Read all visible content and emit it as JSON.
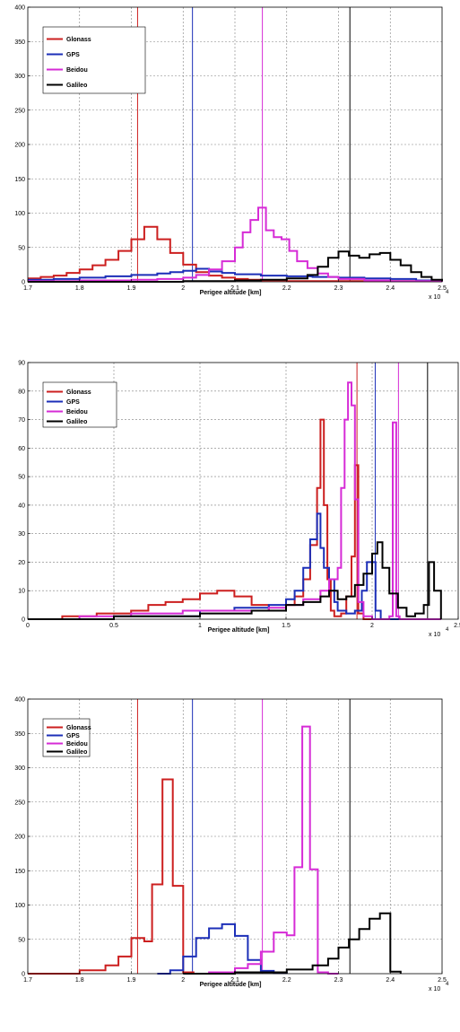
{
  "chart_data": [
    {
      "type": "line",
      "xlabel": "Perigee altitude [km]",
      "x_exponent_label": "x 10",
      "x_exponent": "4",
      "xlim": [
        17000,
        25000
      ],
      "ylim": [
        0,
        400
      ],
      "xticks": [
        17000,
        18000,
        19000,
        20000,
        21000,
        22000,
        23000,
        24000,
        25000
      ],
      "xtick_labels": [
        "1.7",
        "1.8",
        "1.9",
        "2",
        "2.1",
        "2.2",
        "2.3",
        "2.4",
        "2.5"
      ],
      "yticks": [
        0,
        50,
        100,
        150,
        200,
        250,
        300,
        350,
        400
      ],
      "ytick_labels": [
        "0",
        "50",
        "100",
        "150",
        "200",
        "250",
        "300",
        "350",
        "400"
      ],
      "grid": true,
      "legend_position": "top-left",
      "series": [
        {
          "name": "Glonass",
          "color": "#cc1f1f",
          "x": [
            17000,
            17250,
            17500,
            17750,
            18000,
            18250,
            18500,
            18750,
            19000,
            19250,
            19500,
            19750,
            20000,
            20250,
            20500,
            20750,
            21000,
            21250,
            21500,
            21750,
            22000,
            22500,
            23000,
            23500,
            24000,
            25000
          ],
          "values": [
            5,
            7,
            9,
            13,
            18,
            24,
            32,
            45,
            62,
            80,
            62,
            42,
            25,
            14,
            9,
            6,
            4,
            3,
            2,
            2,
            1,
            1,
            1,
            1,
            1,
            0
          ]
        },
        {
          "name": "GPS",
          "color": "#1c2fb8",
          "x": [
            17000,
            17500,
            18000,
            18500,
            19000,
            19500,
            19750,
            20000,
            20250,
            20500,
            20750,
            21000,
            21500,
            22000,
            22500,
            23000,
            23500,
            24000,
            24500,
            25000
          ],
          "values": [
            3,
            4,
            6,
            8,
            10,
            12,
            14,
            16,
            19,
            15,
            13,
            11,
            9,
            8,
            7,
            6,
            5,
            4,
            2,
            0
          ]
        },
        {
          "name": "Beidou",
          "color": "#d62bd6",
          "x": [
            17000,
            17500,
            18000,
            18500,
            19000,
            19500,
            20000,
            20250,
            20500,
            20750,
            21000,
            21150,
            21300,
            21450,
            21600,
            21750,
            21900,
            22050,
            22200,
            22400,
            22600,
            22800,
            23000,
            23500,
            24000,
            25000
          ],
          "values": [
            1,
            1,
            2,
            2,
            3,
            4,
            6,
            10,
            18,
            30,
            50,
            72,
            90,
            108,
            75,
            65,
            62,
            45,
            30,
            20,
            12,
            7,
            4,
            2,
            1,
            0
          ]
        },
        {
          "name": "Galileo",
          "color": "#000000",
          "x": [
            17000,
            18000,
            19000,
            20000,
            21000,
            21500,
            22000,
            22400,
            22600,
            22800,
            23000,
            23200,
            23400,
            23600,
            23800,
            24000,
            24200,
            24400,
            24600,
            24800,
            25000
          ],
          "values": [
            0,
            0,
            0,
            1,
            2,
            3,
            5,
            10,
            22,
            35,
            44,
            38,
            35,
            40,
            42,
            32,
            24,
            14,
            7,
            3,
            1
          ]
        }
      ],
      "reference_lines": [
        {
          "series": "Glonass",
          "x": 19120
        },
        {
          "series": "GPS",
          "x": 20180
        },
        {
          "series": "Beidou",
          "x": 21530
        },
        {
          "series": "Galileo",
          "x": 23220
        }
      ]
    },
    {
      "type": "line",
      "xlabel": "Perigee altitude [km]",
      "x_exponent_label": "x 10",
      "x_exponent": "4",
      "xlim": [
        0,
        25000
      ],
      "ylim": [
        0,
        90
      ],
      "xticks": [
        0,
        5000,
        10000,
        15000,
        20000,
        25000
      ],
      "xtick_labels": [
        "0",
        "0.5",
        "1",
        "1.5",
        "2",
        "2.5"
      ],
      "yticks": [
        0,
        10,
        20,
        30,
        40,
        50,
        60,
        70,
        80,
        90
      ],
      "ytick_labels": [
        "0",
        "10",
        "20",
        "30",
        "40",
        "50",
        "60",
        "70",
        "80",
        "90"
      ],
      "grid": true,
      "legend_position": "top-left",
      "series": [
        {
          "name": "Glonass",
          "color": "#cc1f1f",
          "x": [
            0,
            2000,
            4000,
            5000,
            6000,
            7000,
            8000,
            9000,
            10000,
            11000,
            12000,
            13000,
            14000,
            15000,
            15500,
            16000,
            16400,
            16800,
            17000,
            17200,
            17400,
            17600,
            17800,
            18000,
            18200,
            18500,
            18800,
            19000,
            19200,
            19500,
            20000,
            21000,
            22000,
            23000,
            24000
          ],
          "values": [
            0,
            1,
            2,
            2,
            3,
            5,
            6,
            7,
            9,
            10,
            8,
            5,
            3,
            5,
            8,
            14,
            26,
            46,
            70,
            40,
            14,
            3,
            1,
            1,
            2,
            8,
            22,
            54,
            2,
            0,
            0,
            0,
            0,
            0,
            0
          ]
        },
        {
          "name": "GPS",
          "color": "#1c2fb8",
          "x": [
            0,
            5000,
            10000,
            12000,
            14000,
            15000,
            15500,
            16000,
            16400,
            16800,
            17000,
            17200,
            17500,
            17800,
            18000,
            18500,
            19000,
            19400,
            19700,
            20000,
            20200,
            20500,
            21000,
            22000,
            23000,
            24000
          ],
          "values": [
            0,
            1,
            3,
            4,
            5,
            7,
            10,
            18,
            28,
            37,
            25,
            18,
            14,
            6,
            3,
            2,
            3,
            10,
            20,
            20,
            3,
            0,
            0,
            0,
            0,
            0
          ]
        },
        {
          "name": "Beidou",
          "color": "#d62bd6",
          "x": [
            0,
            3000,
            6000,
            9000,
            12000,
            14000,
            15000,
            16000,
            17000,
            17500,
            18000,
            18200,
            18400,
            18600,
            18800,
            19000,
            19200,
            19500,
            20000,
            20500,
            20800,
            21000,
            21200,
            21400,
            21600,
            22000,
            23000,
            24000
          ],
          "values": [
            0,
            1,
            2,
            3,
            3,
            4,
            5,
            7,
            10,
            14,
            18,
            46,
            70,
            83,
            75,
            42,
            6,
            1,
            0,
            0,
            0,
            1,
            69,
            1,
            0,
            0,
            0,
            0
          ]
        },
        {
          "name": "Galileo",
          "color": "#000000",
          "x": [
            0,
            5000,
            10000,
            13000,
            15000,
            16000,
            17000,
            17500,
            18000,
            18500,
            19000,
            19500,
            20000,
            20300,
            20600,
            21000,
            21500,
            22000,
            22500,
            23000,
            23300,
            23600,
            24000
          ],
          "values": [
            0,
            1,
            2,
            3,
            5,
            6,
            8,
            10,
            7,
            8,
            12,
            16,
            23,
            27,
            18,
            9,
            4,
            1,
            2,
            5,
            20,
            10,
            0
          ]
        }
      ],
      "reference_lines": [
        {
          "series": "Glonass",
          "x": 19120
        },
        {
          "series": "GPS",
          "x": 20180
        },
        {
          "series": "Beidou",
          "x": 21530
        },
        {
          "series": "Galileo",
          "x": 23220
        }
      ]
    },
    {
      "type": "line",
      "xlabel": "Perigee altitude [km]",
      "x_exponent_label": "x 10",
      "x_exponent": "4",
      "xlim": [
        17000,
        25000
      ],
      "ylim": [
        0,
        400
      ],
      "xticks": [
        17000,
        18000,
        19000,
        20000,
        21000,
        22000,
        23000,
        24000,
        25000
      ],
      "xtick_labels": [
        "1.7",
        "1.8",
        "1.9",
        "2",
        "2.1",
        "2.2",
        "2.3",
        "2.4",
        "2.5"
      ],
      "yticks": [
        0,
        50,
        100,
        150,
        200,
        250,
        300,
        350,
        400
      ],
      "ytick_labels": [
        "0",
        "50",
        "100",
        "150",
        "200",
        "250",
        "300",
        "350",
        "400"
      ],
      "grid": true,
      "legend_position": "top-left",
      "series": [
        {
          "name": "Glonass",
          "color": "#cc1f1f",
          "x": [
            17000,
            18000,
            18500,
            18750,
            19000,
            19250,
            19400,
            19600,
            19800,
            20000,
            20200,
            20500,
            21000
          ],
          "values": [
            0,
            5,
            12,
            25,
            52,
            47,
            130,
            283,
            128,
            2,
            0,
            0,
            0
          ]
        },
        {
          "name": "GPS",
          "color": "#1c2fb8",
          "x": [
            19500,
            19750,
            20000,
            20250,
            20500,
            20750,
            21000,
            21250,
            21500,
            21750,
            22000
          ],
          "values": [
            0,
            5,
            25,
            52,
            66,
            72,
            55,
            20,
            4,
            1,
            0
          ]
        },
        {
          "name": "Beidou",
          "color": "#d62bd6",
          "x": [
            20000,
            20500,
            21000,
            21250,
            21500,
            21750,
            22000,
            22150,
            22300,
            22450,
            22600,
            22800,
            23000
          ],
          "values": [
            0,
            2,
            8,
            14,
            32,
            60,
            56,
            155,
            360,
            152,
            2,
            0,
            0
          ]
        },
        {
          "name": "Galileo",
          "color": "#000000",
          "x": [
            20000,
            21000,
            22000,
            22500,
            22800,
            23000,
            23200,
            23400,
            23600,
            23800,
            24000,
            24200
          ],
          "values": [
            0,
            2,
            6,
            12,
            22,
            38,
            50,
            65,
            80,
            88,
            3,
            0
          ]
        }
      ],
      "reference_lines": [
        {
          "series": "Glonass",
          "x": 19120
        },
        {
          "series": "GPS",
          "x": 20180
        },
        {
          "series": "Beidou",
          "x": 21530
        },
        {
          "series": "Galileo",
          "x": 23220
        }
      ]
    }
  ]
}
